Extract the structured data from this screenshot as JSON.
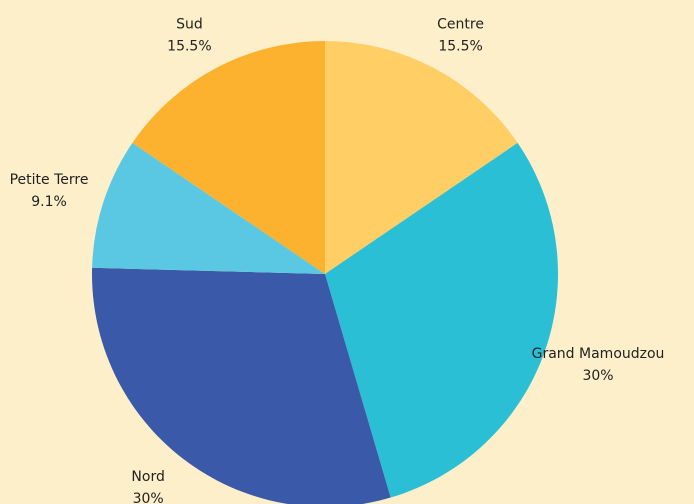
{
  "chart_data": {
    "type": "pie",
    "categories": [
      "Centre",
      "Grand Mamoudzou",
      "Nord",
      "Petite Terre",
      "Sud"
    ],
    "values": [
      15.5,
      30,
      30,
      9.1,
      15.5
    ],
    "value_labels": [
      "15.5%",
      "30%",
      "30%",
      "9.1%",
      "15.5%"
    ],
    "colors": [
      "#ffcf66",
      "#2bbfd6",
      "#3a59a8",
      "#5bc8e3",
      "#fdb22f"
    ]
  }
}
